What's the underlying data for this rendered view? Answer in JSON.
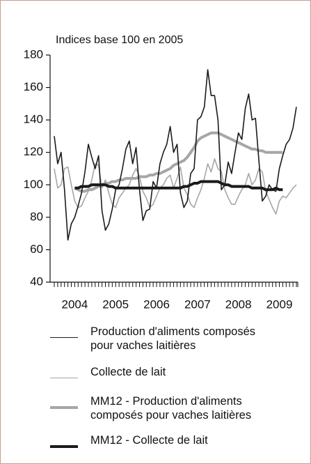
{
  "chart_data": {
    "type": "line",
    "title": "Indices base 100 en 2005",
    "categories": [
      null,
      null,
      null,
      null,
      null,
      null,
      "2004",
      null,
      null,
      null,
      null,
      null,
      null,
      null,
      null,
      null,
      null,
      null,
      "2005",
      null,
      null,
      null,
      null,
      null,
      null,
      null,
      null,
      null,
      null,
      null,
      "2006",
      null,
      null,
      null,
      null,
      null,
      null,
      null,
      null,
      null,
      null,
      null,
      "2007",
      null,
      null,
      null,
      null,
      null,
      null,
      null,
      null,
      null,
      null,
      null,
      "2008",
      null,
      null,
      null,
      null,
      null,
      null,
      null,
      null,
      null,
      null,
      null,
      "2009",
      null,
      null,
      null,
      null,
      null
    ],
    "ylim": [
      40,
      180
    ],
    "yticks": [
      40,
      60,
      80,
      100,
      120,
      140,
      160,
      180
    ],
    "series": [
      {
        "name": "Production d'aliments composés pour vaches laitières",
        "color": "#1a1a1a",
        "width": 1.6,
        "values": [
          130,
          113,
          120,
          97,
          66,
          76,
          80,
          87,
          95,
          108,
          125,
          117,
          110,
          118,
          84,
          72,
          76,
          85,
          97,
          100,
          110,
          122,
          127,
          113,
          123,
          97,
          78,
          84,
          85,
          102,
          98,
          113,
          120,
          125,
          136,
          120,
          125,
          95,
          86,
          90,
          107,
          110,
          140,
          142,
          148,
          171,
          155,
          155,
          140,
          97,
          100,
          114,
          107,
          120,
          132,
          128,
          147,
          156,
          140,
          141,
          115,
          90,
          93,
          100,
          97,
          96,
          110,
          118,
          125,
          128,
          135,
          148
        ]
      },
      {
        "name": "Collecte de lait",
        "color": "#a6a6a6",
        "width": 1.6,
        "values": [
          110,
          98,
          100,
          110,
          111,
          100,
          90,
          86,
          87,
          92,
          96,
          103,
          113,
          112,
          98,
          103,
          95,
          88,
          86,
          92,
          95,
          98,
          100,
          106,
          110,
          105,
          96,
          92,
          86,
          88,
          93,
          98,
          100,
          104,
          106,
          98,
          104,
          111,
          98,
          94,
          88,
          86,
          92,
          97,
          104,
          113,
          108,
          116,
          110,
          108,
          97,
          92,
          88,
          88,
          93,
          97,
          100,
          107,
          100,
          103,
          110,
          108,
          96,
          91,
          86,
          82,
          90,
          93,
          92,
          95,
          98,
          100
        ]
      },
      {
        "name": "MM12 - Production d'aliments composés pour vaches laitières",
        "color": "#a6a6a6",
        "width": 4,
        "values": [
          null,
          null,
          null,
          null,
          null,
          null,
          98,
          97,
          96,
          96,
          97,
          97,
          98,
          99,
          100,
          101,
          101,
          102,
          102,
          103,
          103,
          104,
          104,
          104,
          104,
          105,
          105,
          105,
          106,
          106,
          107,
          107,
          108,
          109,
          110,
          112,
          113,
          114,
          115,
          117,
          120,
          123,
          127,
          129,
          130,
          131,
          132,
          132,
          132,
          131,
          130,
          129,
          128,
          127,
          126,
          125,
          124,
          123,
          122,
          122,
          121,
          121,
          120,
          120,
          120,
          120,
          120,
          120,
          null,
          null,
          null,
          null
        ]
      },
      {
        "name": "MM12 - Collecte de lait",
        "color": "#1a1a1a",
        "width": 4,
        "values": [
          null,
          null,
          null,
          null,
          null,
          null,
          98,
          98,
          99,
          99,
          99,
          100,
          100,
          100,
          100,
          100,
          99,
          99,
          98,
          98,
          98,
          98,
          98,
          98,
          98,
          98,
          98,
          98,
          98,
          98,
          98,
          98,
          98,
          98,
          98,
          98,
          98,
          98,
          99,
          99,
          100,
          101,
          101,
          102,
          102,
          102,
          102,
          102,
          102,
          101,
          100,
          100,
          99,
          99,
          99,
          99,
          99,
          99,
          98,
          98,
          98,
          98,
          97,
          97,
          97,
          98,
          97,
          97,
          null,
          null,
          null,
          null
        ]
      }
    ]
  }
}
